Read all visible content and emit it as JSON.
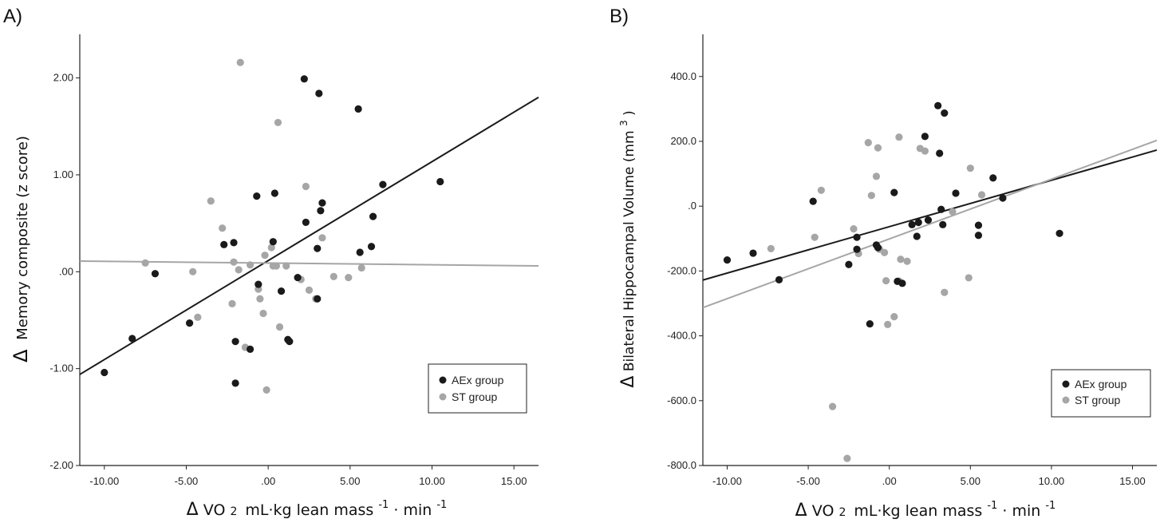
{
  "chart_data": [
    {
      "panel_label": "A)",
      "type": "scatter",
      "xlabel": {
        "delta": "Δ",
        "base": "VO",
        "sub": "2",
        "unit_text": "mL·kg lean mass",
        "exp1": "-1",
        "dot": "·",
        "min": "min",
        "exp2": "-1"
      },
      "ylabel": {
        "delta": "Δ",
        "text": "Memory composite (z score)"
      },
      "xlim": [
        -11.5,
        16.5
      ],
      "ylim": [
        -2.0,
        2.45
      ],
      "x_ticks": [
        -10,
        -5,
        0,
        5,
        10,
        15
      ],
      "x_tick_labels": [
        "-10.00",
        "-5.00",
        ".00",
        "5.00",
        "10.00",
        "15.00"
      ],
      "y_ticks": [
        -2,
        -1,
        0,
        1,
        2
      ],
      "y_tick_labels": [
        "-2.00",
        "-1.00",
        ".00",
        "1.00",
        "2.00"
      ],
      "legend_position": "bottom-right",
      "series": [
        {
          "name": "AEx group",
          "color": "#1a1a1a",
          "points": [
            [
              -10,
              -1.04
            ],
            [
              -8.3,
              -0.69
            ],
            [
              -6.9,
              -0.02
            ],
            [
              -4.8,
              -0.53
            ],
            [
              -2.7,
              0.28
            ],
            [
              -2.1,
              0.3
            ],
            [
              -2,
              -0.72
            ],
            [
              -2,
              -1.15
            ],
            [
              -1.1,
              -0.8
            ],
            [
              -0.7,
              0.78
            ],
            [
              -0.6,
              -0.13
            ],
            [
              0.3,
              0.31
            ],
            [
              0.4,
              0.81
            ],
            [
              0.8,
              -0.2
            ],
            [
              1.2,
              -0.7
            ],
            [
              1.3,
              -0.72
            ],
            [
              1.8,
              -0.06
            ],
            [
              2.2,
              1.99
            ],
            [
              2.3,
              0.51
            ],
            [
              3,
              0.24
            ],
            [
              3,
              -0.28
            ],
            [
              3.1,
              1.84
            ],
            [
              3.2,
              0.63
            ],
            [
              3.3,
              0.71
            ],
            [
              5.5,
              1.68
            ],
            [
              5.6,
              0.2
            ],
            [
              6.3,
              0.26
            ],
            [
              6.4,
              0.57
            ],
            [
              7,
              0.9
            ],
            [
              10.5,
              0.93
            ]
          ]
        },
        {
          "name": "ST group",
          "color": "#a6a6a6",
          "points": [
            [
              -7.5,
              0.09
            ],
            [
              -4.6,
              0.0
            ],
            [
              -4.3,
              -0.47
            ],
            [
              -3.5,
              0.73
            ],
            [
              -2.8,
              0.45
            ],
            [
              -2.2,
              -0.33
            ],
            [
              -2.1,
              0.1
            ],
            [
              -1.8,
              0.02
            ],
            [
              -1.7,
              2.16
            ],
            [
              -1.4,
              -0.78
            ],
            [
              -1.1,
              0.07
            ],
            [
              -0.6,
              -0.18
            ],
            [
              -0.5,
              -0.28
            ],
            [
              -0.3,
              -0.43
            ],
            [
              -0.2,
              0.17
            ],
            [
              -0.1,
              -1.22
            ],
            [
              0.2,
              0.25
            ],
            [
              0.3,
              0.06
            ],
            [
              0.5,
              0.06
            ],
            [
              0.6,
              1.54
            ],
            [
              0.7,
              -0.57
            ],
            [
              1.1,
              0.06
            ],
            [
              2,
              -0.08
            ],
            [
              2.3,
              0.88
            ],
            [
              2.5,
              -0.19
            ],
            [
              2.9,
              -0.28
            ],
            [
              3.3,
              0.35
            ],
            [
              4,
              -0.05
            ],
            [
              4.9,
              -0.06
            ],
            [
              5.7,
              0.04
            ]
          ]
        }
      ],
      "fit_lines": [
        {
          "series": "AEx group",
          "color": "#1a1a1a",
          "x": [
            -11.5,
            16.5
          ],
          "y": [
            -1.06,
            1.8
          ]
        },
        {
          "series": "ST group",
          "color": "#a6a6a6",
          "x": [
            -11.5,
            16.5
          ],
          "y": [
            0.11,
            0.06
          ]
        }
      ]
    },
    {
      "panel_label": "B)",
      "type": "scatter",
      "xlabel": {
        "delta": "Δ",
        "base": "VO",
        "sub": "2",
        "unit_text": "mL·kg lean mass",
        "exp1": "-1",
        "dot": "·",
        "min": "min",
        "exp2": "-1"
      },
      "ylabel": {
        "delta": "Δ",
        "text": "Bilateral Hippocampal Volume (mm",
        "sup": "3",
        "close": ")"
      },
      "xlim": [
        -11.5,
        16.5
      ],
      "ylim": [
        -800,
        530
      ],
      "x_ticks": [
        -10,
        -5,
        0,
        5,
        10,
        15
      ],
      "x_tick_labels": [
        "-10.00",
        "-5.00",
        ".00",
        "5.00",
        "10.00",
        "15.00"
      ],
      "y_ticks": [
        -800,
        -600,
        -400,
        -200,
        0,
        200,
        400
      ],
      "y_tick_labels": [
        "-800.0",
        "-600.0",
        "-400.0",
        "-200.0",
        ".0",
        "200.0",
        "400.0"
      ],
      "legend_position": "bottom-right",
      "series": [
        {
          "name": "AEx group",
          "color": "#1a1a1a",
          "points": [
            [
              -10,
              -166
            ],
            [
              -8.4,
              -145
            ],
            [
              -6.8,
              -227
            ],
            [
              -4.7,
              15
            ],
            [
              -2.5,
              -180
            ],
            [
              -2,
              -96
            ],
            [
              -2,
              -133
            ],
            [
              -1.2,
              -363
            ],
            [
              -0.8,
              -120
            ],
            [
              -0.7,
              -128
            ],
            [
              0.3,
              42
            ],
            [
              0.5,
              -232
            ],
            [
              0.8,
              -238
            ],
            [
              1.4,
              -57
            ],
            [
              1.7,
              -93
            ],
            [
              1.8,
              -50
            ],
            [
              2.2,
              215
            ],
            [
              2.4,
              -43
            ],
            [
              3,
              310
            ],
            [
              3.1,
              163
            ],
            [
              3.2,
              -10
            ],
            [
              3.3,
              -57
            ],
            [
              3.4,
              287
            ],
            [
              4.1,
              40
            ],
            [
              5.5,
              -59
            ],
            [
              5.5,
              -90
            ],
            [
              6.4,
              87
            ],
            [
              7,
              25
            ],
            [
              10.5,
              -84
            ]
          ]
        },
        {
          "name": "ST group",
          "color": "#a6a6a6",
          "points": [
            [
              -7.3,
              -131
            ],
            [
              -4.6,
              -96
            ],
            [
              -4.2,
              49
            ],
            [
              -3.5,
              -618
            ],
            [
              -2.6,
              -778
            ],
            [
              -2.2,
              -70
            ],
            [
              -1.9,
              -146
            ],
            [
              -1.3,
              196
            ],
            [
              -1.1,
              33
            ],
            [
              -0.8,
              92
            ],
            [
              -0.7,
              180
            ],
            [
              -0.6,
              -133
            ],
            [
              -0.3,
              -143
            ],
            [
              -0.2,
              -230
            ],
            [
              -0.1,
              -365
            ],
            [
              0.3,
              -341
            ],
            [
              0.6,
              213
            ],
            [
              0.6,
              -231
            ],
            [
              0.7,
              -164
            ],
            [
              1.1,
              -170
            ],
            [
              1.9,
              178
            ],
            [
              2.2,
              170
            ],
            [
              3.4,
              -266
            ],
            [
              3.9,
              -17
            ],
            [
              4.9,
              -221
            ],
            [
              5,
              117
            ],
            [
              5.7,
              35
            ]
          ]
        }
      ],
      "fit_lines": [
        {
          "series": "AEx group",
          "color": "#1a1a1a",
          "x": [
            -11.5,
            16.5
          ],
          "y": [
            -228,
            173
          ]
        },
        {
          "series": "ST group",
          "color": "#a6a6a6",
          "x": [
            -11.5,
            16.5
          ],
          "y": [
            -313,
            203
          ]
        }
      ]
    }
  ]
}
